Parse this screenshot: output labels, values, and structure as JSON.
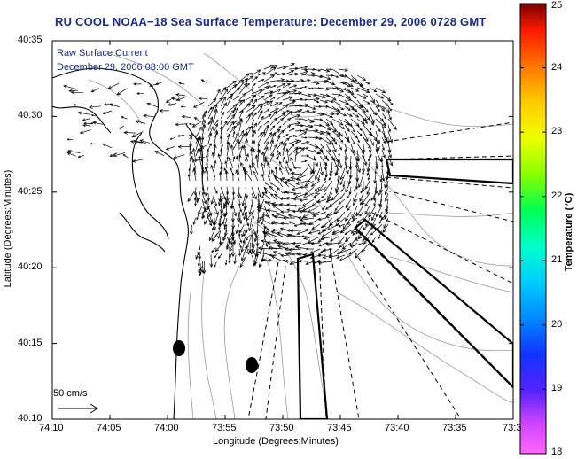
{
  "title": "RU COOL  NOAA−18  Sea Surface Temperature:  December 29, 2006 0728 GMT",
  "overlay": {
    "label": "Raw Surface Current",
    "date": "December 29, 2006 08:00 GMT"
  },
  "axes": {
    "xlabel": "Longitude (Degrees:Minutes)",
    "ylabel": "Latitude (Degrees:Minutes)",
    "xticks": [
      "74:10",
      "74:05",
      "74:00",
      "73:55",
      "73:50",
      "73:45",
      "73:40",
      "73:35",
      "73:3"
    ],
    "yticks": [
      "40:35",
      "40:30",
      "40:25",
      "40:20",
      "40:15",
      "40:10"
    ]
  },
  "scale_arrow": {
    "label": "50 cm/s"
  },
  "colorbar": {
    "label": "Temperature (°C)",
    "ticks": [
      "25",
      "24",
      "23",
      "22",
      "21",
      "20",
      "19",
      "18"
    ],
    "min": 18,
    "max": 25
  },
  "colors": {
    "title": "#1a2b8c",
    "frame": "#000000",
    "coast": "#000000",
    "contour": "#9a9a9a"
  }
}
